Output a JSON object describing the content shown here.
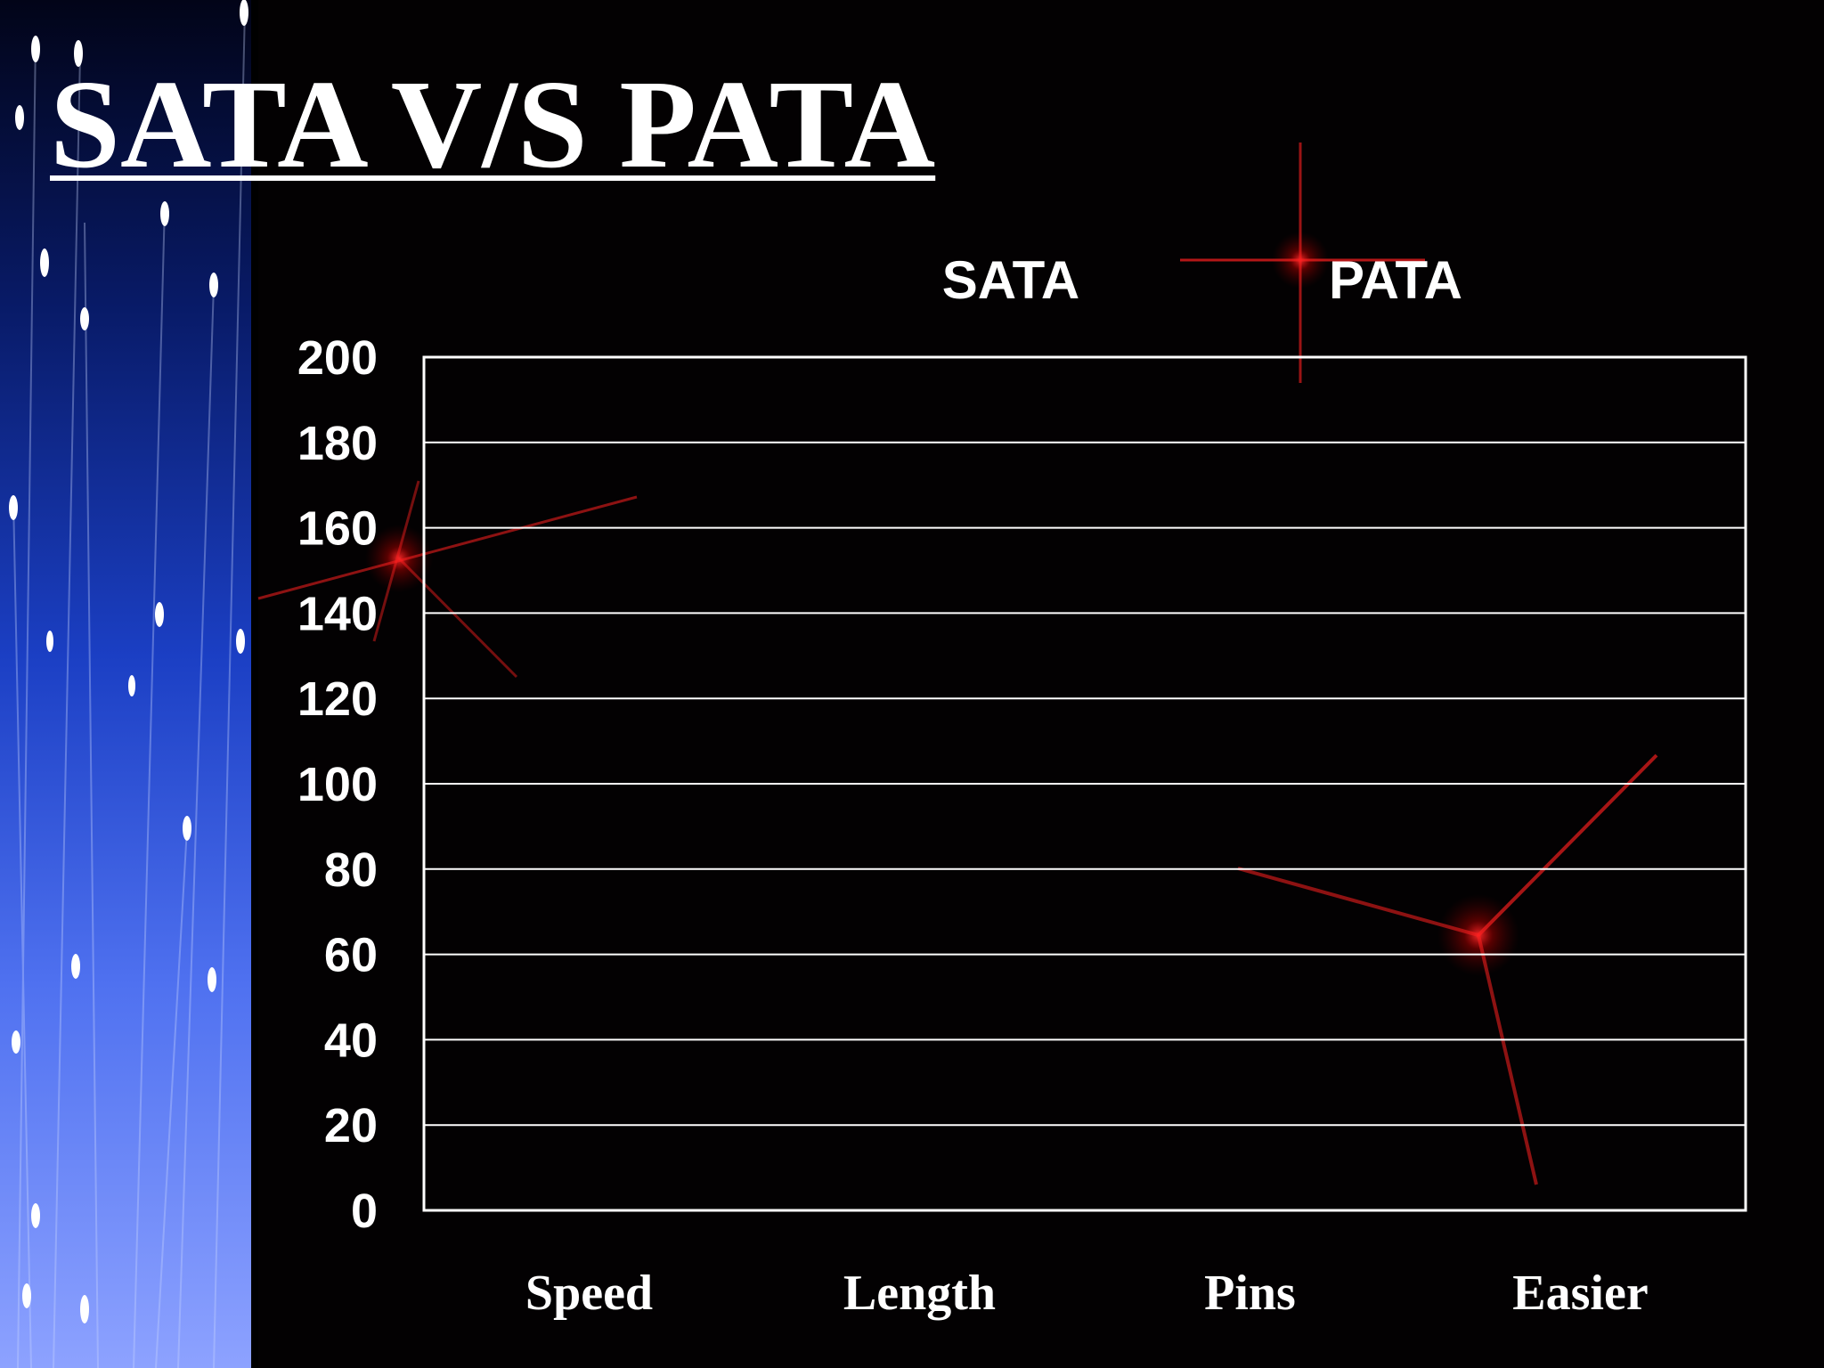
{
  "slide": {
    "title": "SATA V/S PATA",
    "colors": {
      "background": "#030102",
      "text": "#ffffff",
      "gridlines": "#ffffff",
      "flare": "#ff1a1a",
      "fiber_panel": "#1b3fc4"
    }
  },
  "chart_data": {
    "type": "bar",
    "title": "",
    "xlabel": "",
    "ylabel": "",
    "categories": [
      "Speed",
      "Length",
      "Pins",
      "Easier"
    ],
    "ylim": [
      0,
      200
    ],
    "yticks": [
      0,
      20,
      40,
      60,
      80,
      100,
      120,
      140,
      160,
      180,
      200
    ],
    "grid": true,
    "legend_position": "top",
    "series": [
      {
        "name": "SATA",
        "values": [
          null,
          null,
          null,
          null
        ]
      },
      {
        "name": "PATA",
        "values": [
          null,
          null,
          null,
          null
        ]
      }
    ]
  }
}
